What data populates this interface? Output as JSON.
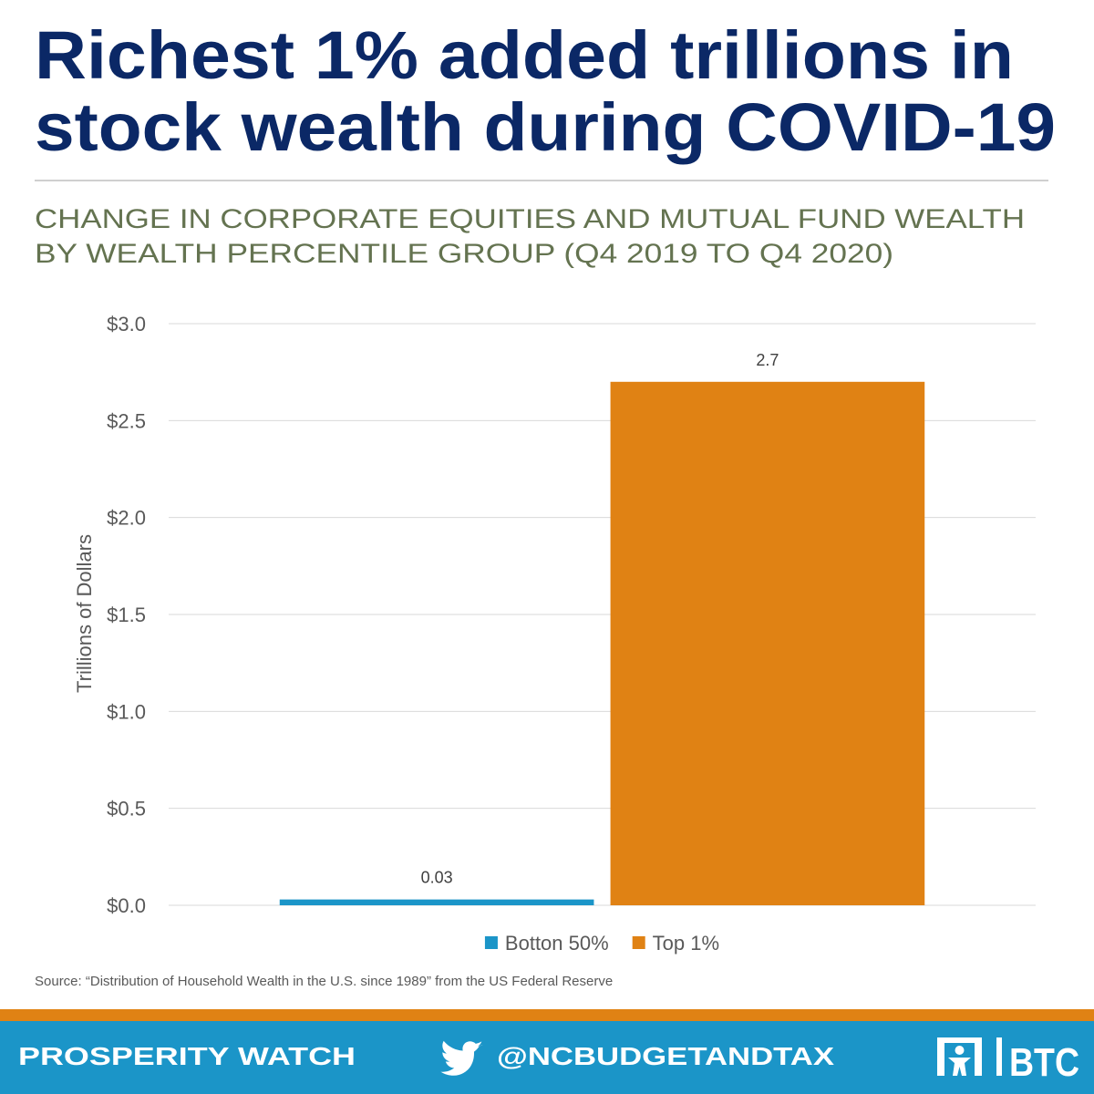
{
  "title": [
    "Richest 1% added trillions in",
    "stock wealth during COVID-19"
  ],
  "subtitle": [
    "CHANGE IN CORPORATE EQUITIES AND MUTUAL FUND WEALTH",
    "BY WEALTH PERCENTILE GROUP (Q4 2019 TO Q4 2020)"
  ],
  "chart_data": {
    "type": "bar",
    "y_label": "Trillions of Dollars",
    "categories": [
      null
    ],
    "series": [
      {
        "name": "Botton 50%",
        "color": "#1b95c8",
        "values": [
          0.03
        ]
      },
      {
        "name": "Top 1%",
        "color": "#e08214",
        "values": [
          2.7
        ]
      }
    ],
    "ylim": [
      0,
      3.0
    ],
    "yticks": [
      {
        "value": 0,
        "label": "$0.0"
      },
      {
        "value": 0.5,
        "label": "$0.5"
      },
      {
        "value": 1.0,
        "label": "$1.0"
      },
      {
        "value": 1.5,
        "label": "$1.5"
      },
      {
        "value": 2.0,
        "label": "$2.0"
      },
      {
        "value": 2.5,
        "label": "$2.5"
      },
      {
        "value": 3.0,
        "label": "$3.0"
      }
    ],
    "grid": true,
    "legend": "bottom"
  },
  "source": "Source: “Distribution of Household Wealth in the U.S. since 1989” from the US Federal Reserve",
  "footer": {
    "left": "PROSPERITY WATCH",
    "handle": "@NCBUDGETANDTAX",
    "logo": "BTC"
  }
}
